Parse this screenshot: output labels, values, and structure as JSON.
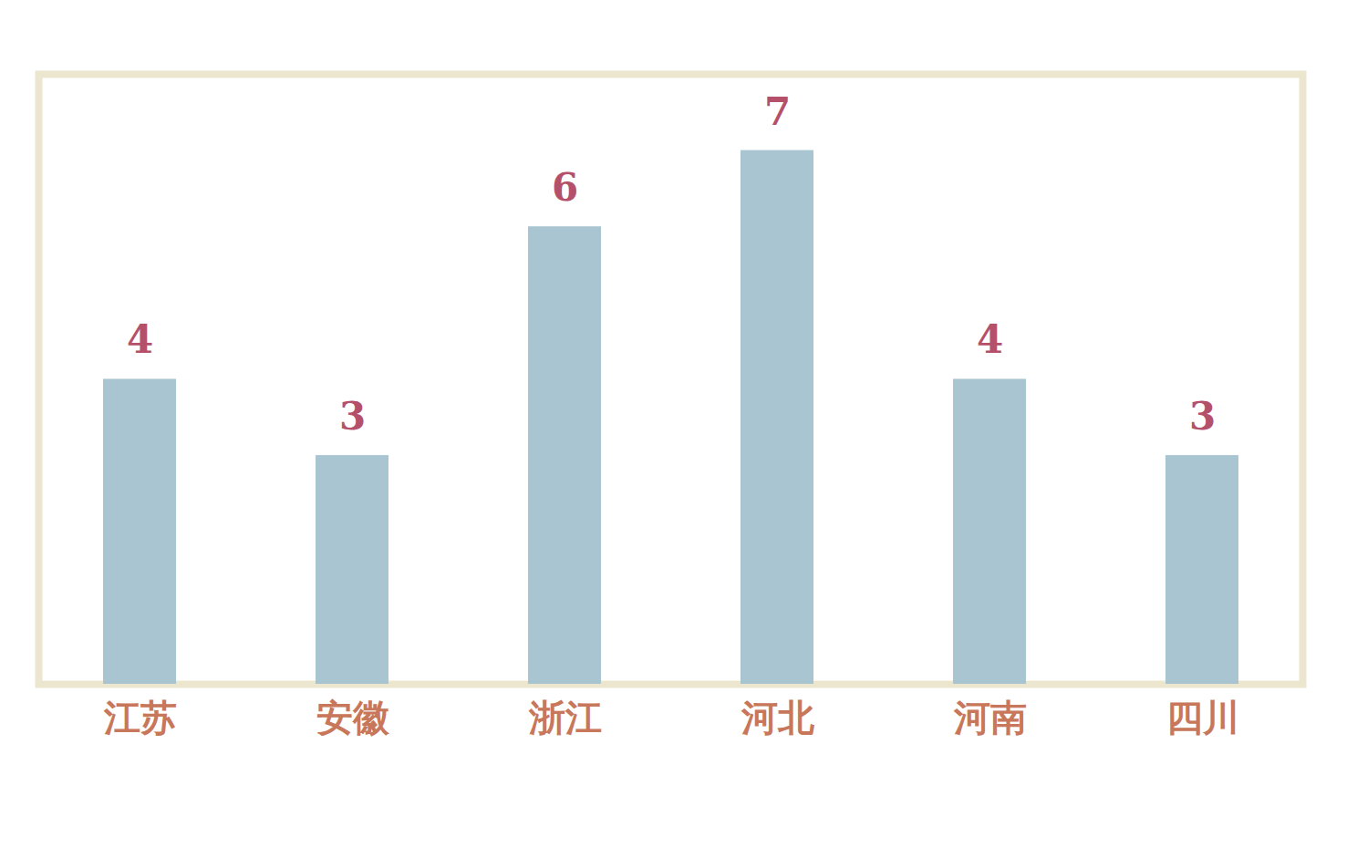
{
  "chart_data": {
    "type": "bar",
    "categories": [
      "江苏",
      "安徽",
      "浙江",
      "河北",
      "河南",
      "四川"
    ],
    "values": [
      4,
      3,
      6,
      7,
      4,
      3
    ],
    "color": "#a3c2cf",
    "ylim": [
      0,
      8
    ],
    "data_labels": true,
    "tick_labels": "x"
  }
}
